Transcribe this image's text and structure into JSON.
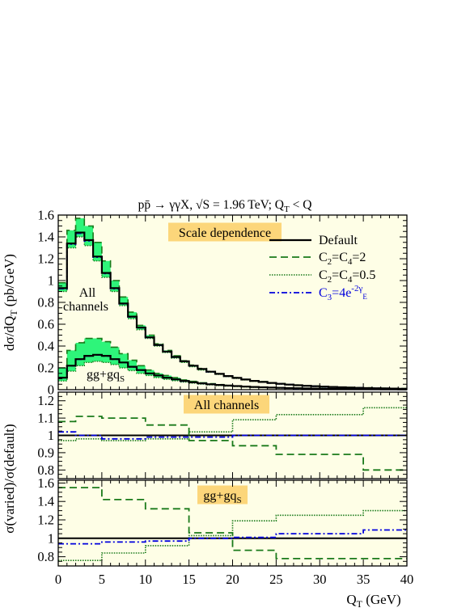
{
  "chart_data": {
    "type": "line",
    "title": "pp̄ → γγX, √S = 1.96 TeV; Q_T < Q",
    "title_parts": {
      "process_p": "p",
      "process_pbar": "p̄",
      "process_rest": " → γγX, √S = 1.96 TeV; Q",
      "qt_sub": "T",
      "tail": " < Q"
    },
    "xlabel": {
      "main": "Q",
      "sub": "T",
      "rest": " (GeV)"
    },
    "x_ticks": [
      0,
      5,
      10,
      15,
      20,
      25,
      30,
      35,
      40
    ],
    "xlim": [
      0,
      40
    ],
    "colors": {
      "panel_bg": "#fefee6",
      "band": "#2ef57a",
      "default": "#000000",
      "c2c4_2": "#1a7a1a",
      "c2c4_05": "#1a7a1a",
      "c3": "#0000dd",
      "label_box": "#fcd67a"
    },
    "legend": {
      "position": "top-right",
      "items": [
        {
          "key": "default",
          "label": "Default",
          "style": "solid"
        },
        {
          "key": "c2c4_2",
          "label": "C",
          "style": "dashed",
          "parts": [
            "C",
            "2",
            "=C",
            "4",
            "=2"
          ]
        },
        {
          "key": "c2c4_05",
          "label": "C",
          "style": "dotted",
          "parts": [
            "C",
            "2",
            "=C",
            "4",
            "=0.5"
          ]
        },
        {
          "key": "c3",
          "label": "C",
          "style": "dashdot",
          "parts": [
            "C",
            "3",
            "=4e",
            "-2γ",
            "E"
          ]
        }
      ]
    },
    "panels": [
      {
        "id": "main",
        "ylabel": "dσ/dQ",
        "ylabel_sub": "T",
        "ylabel_rest": " (pb/GeV)",
        "ylim": [
          0,
          1.6
        ],
        "y_ticks": [
          0,
          0.2,
          0.4,
          0.6,
          0.8,
          1,
          1.2,
          1.4,
          1.6
        ],
        "box_label": "Scale dependence",
        "annotations": [
          {
            "lines": [
              "All",
              "channels"
            ]
          },
          {
            "main": "gg+gq",
            "sub": "S"
          }
        ],
        "bin_edges": [
          0,
          1,
          2,
          3,
          4,
          5,
          6,
          7,
          8,
          9,
          10,
          11,
          12,
          13,
          14,
          15,
          16,
          17,
          18,
          19,
          20,
          21,
          22,
          23,
          24,
          25,
          26,
          27,
          28,
          29,
          30,
          31,
          32,
          33,
          34,
          35,
          36,
          37,
          38,
          39,
          40
        ],
        "series": [
          {
            "name": "All channels",
            "default": [
              0.93,
              1.34,
              1.44,
              1.37,
              1.22,
              1.07,
              0.93,
              0.79,
              0.67,
              0.57,
              0.48,
              0.41,
              0.35,
              0.3,
              0.26,
              0.22,
              0.19,
              0.165,
              0.145,
              0.125,
              0.108,
              0.093,
              0.081,
              0.071,
              0.062,
              0.054,
              0.047,
              0.041,
              0.036,
              0.032,
              0.028,
              0.025,
              0.022,
              0.019,
              0.017,
              0.015,
              0.013,
              0.012,
              0.01,
              0.009
            ],
            "upper": [
              0.98,
              1.46,
              1.57,
              1.5,
              1.35,
              1.18,
              1.0,
              0.85,
              0.71,
              0.59,
              0.5,
              0.42,
              0.36,
              0.31,
              0.265,
              0.225,
              0.195,
              0.168,
              0.147,
              0.127,
              0.11,
              0.095,
              0.083,
              0.073,
              0.064,
              0.056,
              0.049,
              0.043,
              0.038,
              0.034,
              0.03,
              0.027,
              0.024,
              0.021,
              0.019,
              0.017,
              0.015,
              0.013,
              0.011,
              0.01
            ],
            "lower": [
              0.9,
              1.3,
              1.4,
              1.32,
              1.18,
              1.03,
              0.9,
              0.77,
              0.65,
              0.55,
              0.47,
              0.4,
              0.34,
              0.29,
              0.25,
              0.21,
              0.18,
              0.16,
              0.14,
              0.12,
              0.104,
              0.09,
              0.078,
              0.068,
              0.06,
              0.052,
              0.045,
              0.039,
              0.034,
              0.03,
              0.026,
              0.023,
              0.02,
              0.018,
              0.016,
              0.014,
              0.012,
              0.011,
              0.009,
              0.008
            ]
          },
          {
            "name": "gg+gqS",
            "default": [
              0.11,
              0.22,
              0.28,
              0.31,
              0.32,
              0.31,
              0.28,
              0.25,
              0.21,
              0.18,
              0.15,
              0.13,
              0.11,
              0.095,
              0.08,
              0.068,
              0.058,
              0.05,
              0.044,
              0.038,
              0.033,
              0.029,
              0.025,
              0.022,
              0.019,
              0.017,
              0.015,
              0.013,
              0.011,
              0.01,
              0.009,
              0.008,
              0.007,
              0.006,
              0.0055,
              0.005,
              0.0045,
              0.004,
              0.0035,
              0.003
            ],
            "upper": [
              0.2,
              0.36,
              0.43,
              0.47,
              0.47,
              0.44,
              0.39,
              0.33,
              0.27,
              0.22,
              0.18,
              0.15,
              0.13,
              0.11,
              0.09,
              0.076,
              0.064,
              0.055,
              0.047,
              0.04,
              0.034,
              0.03,
              0.026,
              0.023,
              0.02,
              0.018,
              0.016,
              0.014,
              0.012,
              0.011,
              0.01,
              0.009,
              0.008,
              0.007,
              0.006,
              0.0055,
              0.005,
              0.0045,
              0.004,
              0.0035
            ],
            "lower": [
              0.08,
              0.17,
              0.22,
              0.25,
              0.26,
              0.25,
              0.23,
              0.2,
              0.175,
              0.15,
              0.13,
              0.11,
              0.095,
              0.082,
              0.07,
              0.06,
              0.051,
              0.044,
              0.038,
              0.033,
              0.029,
              0.025,
              0.022,
              0.019,
              0.017,
              0.015,
              0.013,
              0.011,
              0.01,
              0.009,
              0.008,
              0.007,
              0.006,
              0.0055,
              0.005,
              0.0045,
              0.004,
              0.0035,
              0.003,
              0.0025
            ]
          }
        ]
      },
      {
        "id": "ratio_all",
        "ylim": [
          0.75,
          1.25
        ],
        "y_ticks": [
          0.8,
          0.9,
          1,
          1.1,
          1.2
        ],
        "box_label": "All channels",
        "bin_edges": [
          0,
          2,
          5,
          10,
          15,
          20,
          25,
          35,
          40
        ],
        "c2c4_2": [
          1.08,
          1.11,
          1.1,
          1.06,
          0.97,
          0.94,
          0.89,
          0.8
        ],
        "c2c4_05": [
          0.97,
          0.98,
          0.97,
          0.98,
          1.02,
          1.09,
          1.12,
          1.16
        ],
        "c3": [
          1.02,
          1.0,
          0.98,
          0.99,
          0.99,
          1.0,
          1.0,
          1.0
        ]
      },
      {
        "id": "ratio_gg",
        "ylim": [
          0.7,
          1.63
        ],
        "y_ticks": [
          0.8,
          1,
          1.2,
          1.4,
          1.6
        ],
        "box_label_main": "gg+gq",
        "box_label_sub": "S",
        "bin_edges": [
          0,
          5,
          10,
          15,
          20,
          25,
          35,
          40
        ],
        "c2c4_2": [
          1.55,
          1.42,
          1.32,
          1.06,
          0.87,
          0.78,
          0.78
        ],
        "c2c4_05": [
          0.76,
          0.84,
          0.92,
          1.03,
          1.19,
          1.25,
          1.3
        ],
        "c3": [
          0.94,
          0.96,
          0.97,
          1.0,
          1.01,
          1.05,
          1.09
        ]
      }
    ],
    "shared_ylabel": {
      "main": "σ(varied)/σ(default)"
    }
  }
}
